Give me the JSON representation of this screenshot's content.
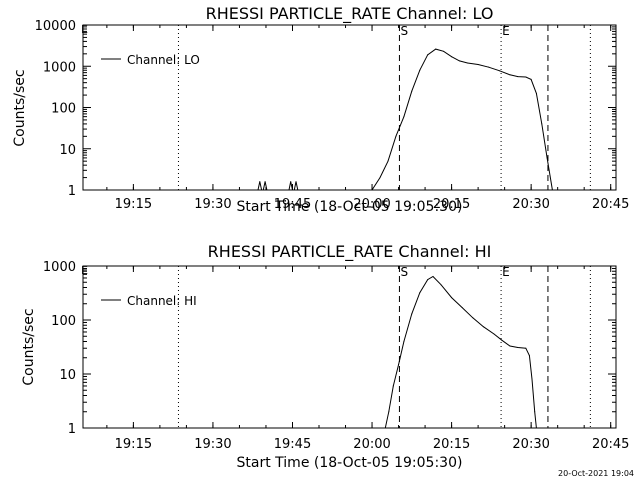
{
  "chart_data": [
    {
      "type": "line",
      "title": "RHESSI PARTICLE_RATE Channel: LO",
      "xlabel": "Start Time (18-Oct-05 19:05:30)",
      "ylabel": "Counts/sec",
      "y_scale": "log",
      "ylim": [
        1,
        10000
      ],
      "xlim": [
        "19:05:30",
        "20:46:00"
      ],
      "x_ticks": [
        "19:15",
        "19:30",
        "19:45",
        "20:00",
        "20:15",
        "20:30",
        "20:45"
      ],
      "y_ticks": [
        "1",
        "10",
        "100",
        "1000",
        "10000"
      ],
      "legend": {
        "position": "top-left"
      },
      "series": [
        {
          "name": "Channel: LO",
          "x": [
            "19:38:30",
            "19:38:50",
            "19:39:10",
            "19:39:30",
            "19:39:50",
            "19:40:10",
            "19:44:20",
            "19:44:40",
            "19:45:00",
            "19:45:20",
            "19:45:40",
            "19:46:00",
            "20:00:00",
            "20:01:30",
            "20:03:00",
            "20:04:30",
            "20:06:00",
            "20:07:30",
            "20:09:00",
            "20:10:30",
            "20:12:00",
            "20:13:30",
            "20:15:00",
            "20:16:30",
            "20:18:00",
            "20:20:00",
            "20:22:00",
            "20:24:00",
            "20:26:00",
            "20:27:30",
            "20:29:00",
            "20:30:00",
            "20:31:00",
            "20:32:00",
            "20:33:00",
            "20:34:00"
          ],
          "y": [
            1,
            1.6,
            1,
            1,
            1.6,
            1,
            1,
            1.6,
            1,
            1,
            1.6,
            1,
            1,
            2,
            5,
            20,
            60,
            250,
            800,
            1900,
            2600,
            2300,
            1700,
            1350,
            1200,
            1100,
            950,
            780,
            620,
            560,
            550,
            480,
            220,
            40,
            6,
            1
          ]
        }
      ],
      "markers": [
        {
          "label": "S",
          "time": "20:05:10",
          "style": "dashed"
        },
        {
          "label": "E",
          "time": "20:24:20",
          "style": "dotted"
        },
        {
          "label": "",
          "time": "20:33:10",
          "style": "dashed"
        },
        {
          "label": "",
          "time": "19:23:30",
          "style": "dotted"
        },
        {
          "label": "",
          "time": "20:41:10",
          "style": "dotted"
        }
      ],
      "left_marker": "E"
    },
    {
      "type": "line",
      "title": "RHESSI PARTICLE_RATE Channel: HI",
      "xlabel": "Start Time (18-Oct-05 19:05:30)",
      "ylabel": "Counts/sec",
      "y_scale": "log",
      "ylim": [
        1,
        1000
      ],
      "xlim": [
        "19:05:30",
        "20:46:00"
      ],
      "x_ticks": [
        "19:15",
        "19:30",
        "19:45",
        "20:00",
        "20:15",
        "20:30",
        "20:45"
      ],
      "y_ticks": [
        "1",
        "10",
        "100",
        "1000"
      ],
      "legend": {
        "position": "top-left"
      },
      "series": [
        {
          "name": "Channel: HI",
          "x": [
            "20:02:30",
            "20:03:10",
            "20:04:00",
            "20:05:00",
            "20:06:00",
            "20:07:30",
            "20:09:00",
            "20:10:30",
            "20:11:30",
            "20:13:00",
            "20:15:00",
            "20:17:00",
            "20:19:00",
            "20:21:00",
            "20:23:00",
            "20:24:30",
            "20:26:00",
            "20:27:30",
            "20:29:00",
            "20:29:40",
            "20:30:10",
            "20:30:40",
            "20:31:00"
          ],
          "y": [
            1,
            2,
            6,
            15,
            40,
            130,
            320,
            560,
            640,
            450,
            260,
            170,
            110,
            75,
            55,
            42,
            33,
            31,
            30,
            22,
            8,
            2,
            1
          ]
        }
      ],
      "markers": [
        {
          "label": "S",
          "time": "20:05:10",
          "style": "dashed"
        },
        {
          "label": "E",
          "time": "20:24:20",
          "style": "dotted"
        },
        {
          "label": "",
          "time": "20:33:10",
          "style": "dashed"
        },
        {
          "label": "",
          "time": "19:23:30",
          "style": "dotted"
        },
        {
          "label": "",
          "time": "20:41:10",
          "style": "dotted"
        }
      ],
      "left_marker": "E"
    }
  ],
  "footer": {
    "timestamp": "20-Oct-2021 19:04"
  }
}
